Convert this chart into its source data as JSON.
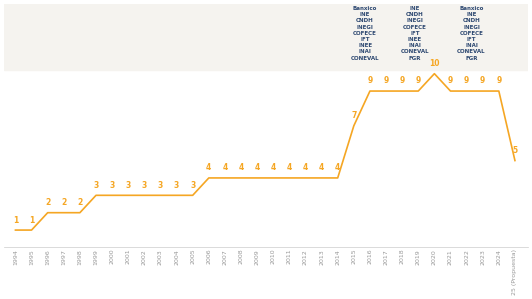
{
  "years": [
    1994,
    1995,
    1996,
    1997,
    1998,
    1999,
    2000,
    2001,
    2002,
    2003,
    2004,
    2005,
    2006,
    2007,
    2008,
    2009,
    2010,
    2011,
    2012,
    2013,
    2014,
    2015,
    2016,
    2017,
    2018,
    2019,
    2020,
    2021,
    2022,
    2023,
    2024,
    2025
  ],
  "values": [
    1,
    1,
    2,
    2,
    2,
    3,
    3,
    3,
    3,
    3,
    3,
    3,
    4,
    4,
    4,
    4,
    4,
    4,
    4,
    4,
    4,
    7,
    9,
    9,
    9,
    9,
    10,
    9,
    9,
    9,
    9,
    5
  ],
  "line_color": "#F5A623",
  "label_color": "#F5A623",
  "text_color": "#2C4770",
  "tick_color": "#999999",
  "bg_color": "#FFFFFF",
  "top_bg_color": "#F5F3EF",
  "ann_2016_x": 2016,
  "ann_2016_label": "Banxico\nINE\nCNDH\nINEGI\nCOFECE\nIFT\nINEE\nINAI\nCONEVAL",
  "ann_2019_x": 2019,
  "ann_2019_label": "INE\nCNDH\nINEGI\nCOFECE\nIFT\nINEE\nINAI\nCONEVAL\nFGR",
  "ann_2021_x": 2022,
  "ann_2021_label": "Banxico\nINE\nCNDH\nINEGI\nCOFECE\nIFT\nINAI\nCONEVAL\nFGR",
  "xlabel_last": "25 (Propuesta)",
  "ylim": [
    0,
    14
  ],
  "xlim_min": 1993.3,
  "xlim_max": 2025.8,
  "ann_fontsize": 4.0,
  "val_fontsize": 5.5,
  "tick_fontsize": 4.5
}
